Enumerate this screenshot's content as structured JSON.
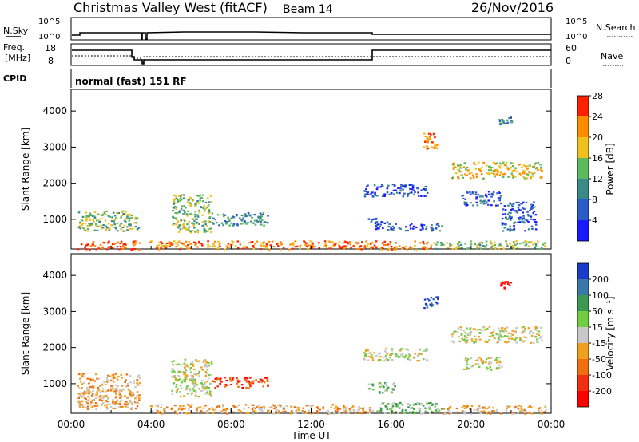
{
  "header": {
    "title": "Christmas Valley West (fitACF)",
    "beam": "Beam 14",
    "date": "26/Nov/2016"
  },
  "summary": {
    "nsky_label": "N.Sky",
    "nsky_ticks": [
      "10^5",
      "10^0"
    ],
    "nsearch_label": "N.Search",
    "nsearch_ticks": [
      "10^5",
      "10^0"
    ],
    "freq_label_1": "Freq.",
    "freq_label_2": "[MHz]",
    "freq_ticks": [
      "18",
      "8"
    ],
    "nave_label": "Nave",
    "nave_ticks": [
      "60",
      "0"
    ],
    "cpid_label": "CPID",
    "cpid_text": "normal (fast) 151 RF"
  },
  "chart_data": [
    {
      "type": "heatmap",
      "name": "power-panel",
      "ylabel": "Slant Range [km]",
      "xlabel": "",
      "yticks": [
        "1000",
        "2000",
        "3000",
        "4000"
      ],
      "ylim": [
        180,
        4600
      ],
      "xlim": [
        0,
        24
      ],
      "colorbar_label": "Power [dB]",
      "colorbar_ticks": [
        "4",
        "8",
        "12",
        "16",
        "20",
        "24",
        "28"
      ],
      "colors": [
        "#1a1aff",
        "#2a5cc8",
        "#3a8a88",
        "#5cb85c",
        "#f0c020",
        "#ff8c00",
        "#ff2000"
      ],
      "regions": [
        {
          "t0": 0.3,
          "t1": 3.4,
          "r0": 180,
          "r1": 420,
          "level": 6
        },
        {
          "t0": 3.9,
          "t1": 18.2,
          "r0": 180,
          "r1": 420,
          "level": 5
        },
        {
          "t0": 18.2,
          "t1": 23.7,
          "r0": 200,
          "r1": 420,
          "level": 3
        },
        {
          "t0": 0.3,
          "t1": 3.4,
          "r0": 700,
          "r1": 1250,
          "level": 3
        },
        {
          "t0": 5.0,
          "t1": 7.0,
          "r0": 650,
          "r1": 1700,
          "level": 3
        },
        {
          "t0": 7.0,
          "t1": 9.8,
          "r0": 850,
          "r1": 1200,
          "level": 2
        },
        {
          "t0": 14.8,
          "t1": 15.8,
          "r0": 750,
          "r1": 1050,
          "level": 1
        },
        {
          "t0": 15.8,
          "t1": 18.5,
          "r0": 700,
          "r1": 900,
          "level": 1
        },
        {
          "t0": 14.6,
          "t1": 17.8,
          "r0": 1650,
          "r1": 2000,
          "level": 1
        },
        {
          "t0": 17.6,
          "t1": 18.3,
          "r0": 2950,
          "r1": 3450,
          "level": 5
        },
        {
          "t0": 19.0,
          "t1": 23.5,
          "r0": 2150,
          "r1": 2600,
          "level": 4
        },
        {
          "t0": 19.5,
          "t1": 21.5,
          "r0": 1400,
          "r1": 1800,
          "level": 1
        },
        {
          "t0": 21.3,
          "t1": 22.0,
          "r0": 3650,
          "r1": 3850,
          "level": 2
        },
        {
          "t0": 21.5,
          "t1": 23.2,
          "r0": 700,
          "r1": 1500,
          "level": 1
        }
      ]
    },
    {
      "type": "heatmap",
      "name": "velocity-panel",
      "ylabel": "Slant Range [km]",
      "xlabel": "Time UT",
      "yticks": [
        "1000",
        "2000",
        "3000",
        "4000"
      ],
      "xticks": [
        "00:00",
        "04:00",
        "08:00",
        "12:00",
        "16:00",
        "20:00",
        "00:00"
      ],
      "ylim": [
        180,
        4600
      ],
      "xlim": [
        0,
        24
      ],
      "colorbar_label": "Velocity [m s⁻¹]",
      "colorbar_ticks": [
        "200",
        "100",
        "50",
        "15",
        "-15",
        "-50",
        "-100",
        "-200"
      ],
      "colors": [
        "#1a3cc8",
        "#3a78aa",
        "#3a9a50",
        "#70cc40",
        "#c8c8c8",
        "#f0a020",
        "#f07010",
        "#f03010",
        "#ff0000"
      ],
      "regions": [
        {
          "t0": 0.3,
          "t1": 3.4,
          "r0": 300,
          "r1": 1300,
          "level": 5
        },
        {
          "t0": 3.9,
          "t1": 15.0,
          "r0": 180,
          "r1": 450,
          "level": 5
        },
        {
          "t0": 15.0,
          "t1": 18.5,
          "r0": 180,
          "r1": 500,
          "level": 3
        },
        {
          "t0": 18.5,
          "t1": 23.7,
          "r0": 180,
          "r1": 420,
          "level": 5
        },
        {
          "t0": 5.0,
          "t1": 7.0,
          "r0": 650,
          "r1": 1700,
          "level": 4
        },
        {
          "t0": 7.0,
          "t1": 9.8,
          "r0": 900,
          "r1": 1200,
          "level": 7
        },
        {
          "t0": 14.8,
          "t1": 16.2,
          "r0": 750,
          "r1": 1050,
          "level": 3
        },
        {
          "t0": 14.6,
          "t1": 17.8,
          "r0": 1650,
          "r1": 2000,
          "level": 4
        },
        {
          "t0": 17.6,
          "t1": 18.3,
          "r0": 3100,
          "r1": 3450,
          "level": 0
        },
        {
          "t0": 19.0,
          "t1": 23.5,
          "r0": 2150,
          "r1": 2600,
          "level": 4
        },
        {
          "t0": 19.5,
          "t1": 21.5,
          "r0": 1400,
          "r1": 1750,
          "level": 4
        },
        {
          "t0": 21.4,
          "t1": 22.0,
          "r0": 3650,
          "r1": 3850,
          "level": 8
        }
      ]
    }
  ]
}
